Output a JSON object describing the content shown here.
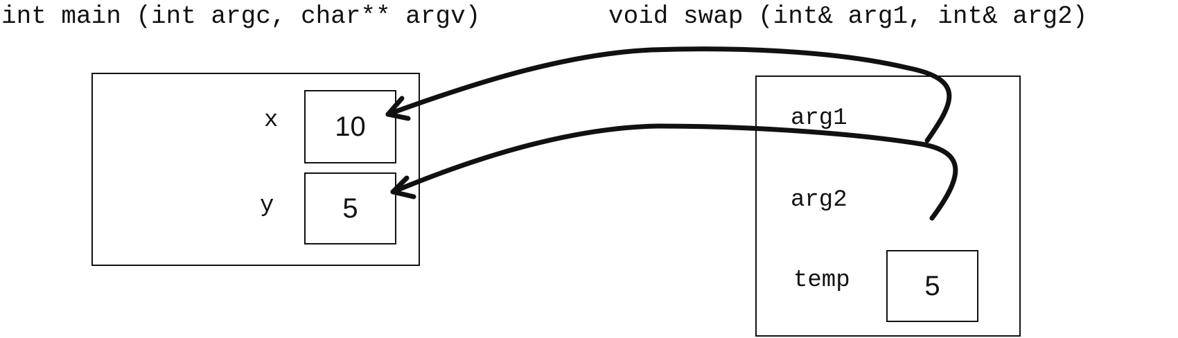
{
  "signatures": {
    "main": "int main (int argc, char** argv)",
    "swap": "void swap (int& arg1, int& arg2)"
  },
  "main_frame": {
    "variables": [
      {
        "name": "x",
        "value": "10"
      },
      {
        "name": "y",
        "value": "5"
      }
    ]
  },
  "swap_frame": {
    "references": [
      {
        "name": "arg1",
        "refers_to": "x"
      },
      {
        "name": "arg2",
        "refers_to": "y"
      }
    ],
    "locals": [
      {
        "name": "temp",
        "value": "5"
      }
    ]
  },
  "colors": {
    "ink": "#111111",
    "background": "#ffffff"
  }
}
